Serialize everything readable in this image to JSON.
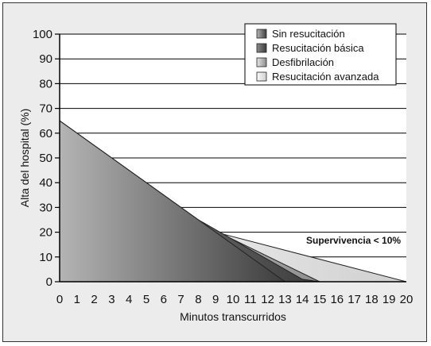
{
  "chart_data": {
    "type": "area",
    "title": "",
    "xlabel": "Minutos transcurridos",
    "ylabel": "Alta del hospital (%)",
    "xlim": [
      0,
      20
    ],
    "ylim": [
      0,
      100
    ],
    "x_ticks": [
      0,
      1,
      2,
      3,
      4,
      5,
      6,
      7,
      8,
      9,
      10,
      11,
      12,
      13,
      14,
      15,
      16,
      17,
      18,
      19,
      20
    ],
    "y_ticks": [
      0,
      10,
      20,
      30,
      40,
      50,
      60,
      70,
      80,
      90,
      100
    ],
    "grid": "horizontal",
    "legend_position": "top-right",
    "annotation": "Supervivencia < 10%",
    "series": [
      {
        "name": "Resucitación avanzada",
        "color_start": "#fafafa",
        "color_end": "#cfcfcf",
        "points": [
          [
            0,
            65
          ],
          [
            8,
            25
          ],
          [
            9,
            20
          ],
          [
            20,
            0
          ]
        ]
      },
      {
        "name": "Desfibrilación",
        "color_start": "#e6e6e6",
        "color_end": "#8c8c8c",
        "points": [
          [
            0,
            65
          ],
          [
            8,
            25
          ],
          [
            9,
            20.5
          ],
          [
            15,
            0
          ]
        ]
      },
      {
        "name": "Resucitación básica",
        "color_start": "#8a8a8a",
        "color_end": "#3c3c3c",
        "points": [
          [
            0,
            65
          ],
          [
            8,
            25
          ],
          [
            9,
            21
          ],
          [
            14,
            1
          ],
          [
            15,
            0
          ]
        ]
      },
      {
        "name": "Sin resucitación",
        "color_start": "#b4b4b4",
        "color_end": "#3e3e3e",
        "points": [
          [
            0,
            65
          ],
          [
            8,
            25
          ],
          [
            13,
            0
          ]
        ]
      }
    ],
    "legend_order": [
      "Sin resucitación",
      "Resucitación básica",
      "Desfibrilación",
      "Resucitación avanzada"
    ]
  }
}
